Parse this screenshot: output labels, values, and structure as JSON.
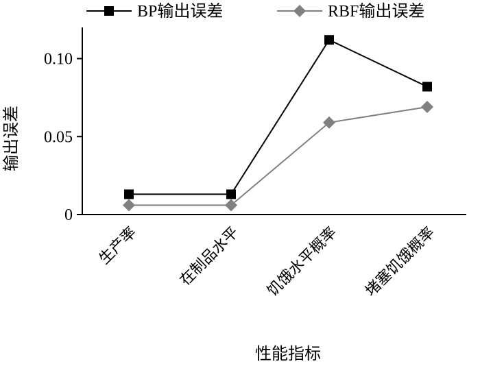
{
  "chart_data": {
    "type": "line",
    "categories": [
      "生产率",
      "在制品水平",
      "饥饿水平概率",
      "堵塞饥饿概率"
    ],
    "series": [
      {
        "name": "BP输出误差",
        "values": [
          0.013,
          0.013,
          0.112,
          0.082
        ],
        "color": "#000000",
        "marker": "square"
      },
      {
        "name": "RBF输出误差",
        "values": [
          0.006,
          0.006,
          0.059,
          0.069
        ],
        "color": "#808080",
        "marker": "diamond"
      }
    ],
    "xlabel": "性能指标",
    "ylabel": "输出误差",
    "ylim": [
      0,
      0.12
    ],
    "yticks": [
      0,
      0.05,
      0.1
    ],
    "ytick_labels": [
      "0",
      "0.05",
      "0.10"
    ],
    "grid": false,
    "legend": "top"
  }
}
